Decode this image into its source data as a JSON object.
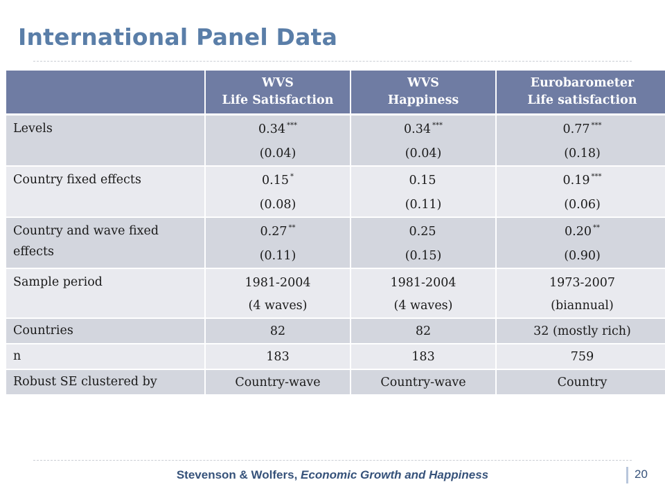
{
  "title": "International Panel Data",
  "table": {
    "headers": [
      {
        "line1": "",
        "line2": ""
      },
      {
        "line1": "WVS",
        "line2": "Life Satisfaction"
      },
      {
        "line1": "WVS",
        "line2": "Happiness"
      },
      {
        "line1": "Eurobarometer",
        "line2": "Life satisfaction"
      }
    ],
    "rows": [
      {
        "label": "Levels",
        "cells": [
          {
            "line1": "0.34",
            "sig": "***",
            "line2": "(0.04)"
          },
          {
            "line1": "0.34",
            "sig": "***",
            "line2": "(0.04)"
          },
          {
            "line1": "0.77",
            "sig": "***",
            "line2": "(0.18)"
          }
        ]
      },
      {
        "label": "Country fixed effects",
        "cells": [
          {
            "line1": "0.15",
            "sig": "*",
            "line2": "(0.08)"
          },
          {
            "line1": "0.15",
            "sig": "",
            "line2": "(0.11)"
          },
          {
            "line1": "0.19",
            "sig": "***",
            "line2": "(0.06)"
          }
        ]
      },
      {
        "label": "Country and wave fixed effects",
        "cells": [
          {
            "line1": "0.27",
            "sig": "**",
            "line2": "(0.11)"
          },
          {
            "line1": "0.25",
            "sig": "",
            "line2": "(0.15)"
          },
          {
            "line1": "0.20",
            "sig": "**",
            "line2": "(0.90)"
          }
        ]
      },
      {
        "label": "Sample period",
        "cells": [
          {
            "line1": "1981-2004",
            "line2": "(4 waves)"
          },
          {
            "line1": "1981-2004",
            "line2": "(4 waves)"
          },
          {
            "line1": "1973-2007",
            "line2": "(biannual)"
          }
        ]
      },
      {
        "label": "Countries",
        "cells": [
          "82",
          "82",
          "32 (mostly rich)"
        ]
      },
      {
        "label": "n",
        "cells": [
          "183",
          "183",
          "759"
        ]
      },
      {
        "label": "Robust SE clustered by",
        "cells": [
          "Country-wave",
          "Country-wave",
          "Country"
        ]
      }
    ]
  },
  "footer": {
    "authors": "Stevenson & Wolfers,",
    "book": "Economic Growth and Happiness",
    "page_number": "20"
  },
  "colors": {
    "title": "#5a7ea8",
    "header_bg": "#6f7ca3",
    "row_dark": "#d3d6de",
    "row_light": "#e9eaef",
    "footer_text": "#36527a"
  }
}
